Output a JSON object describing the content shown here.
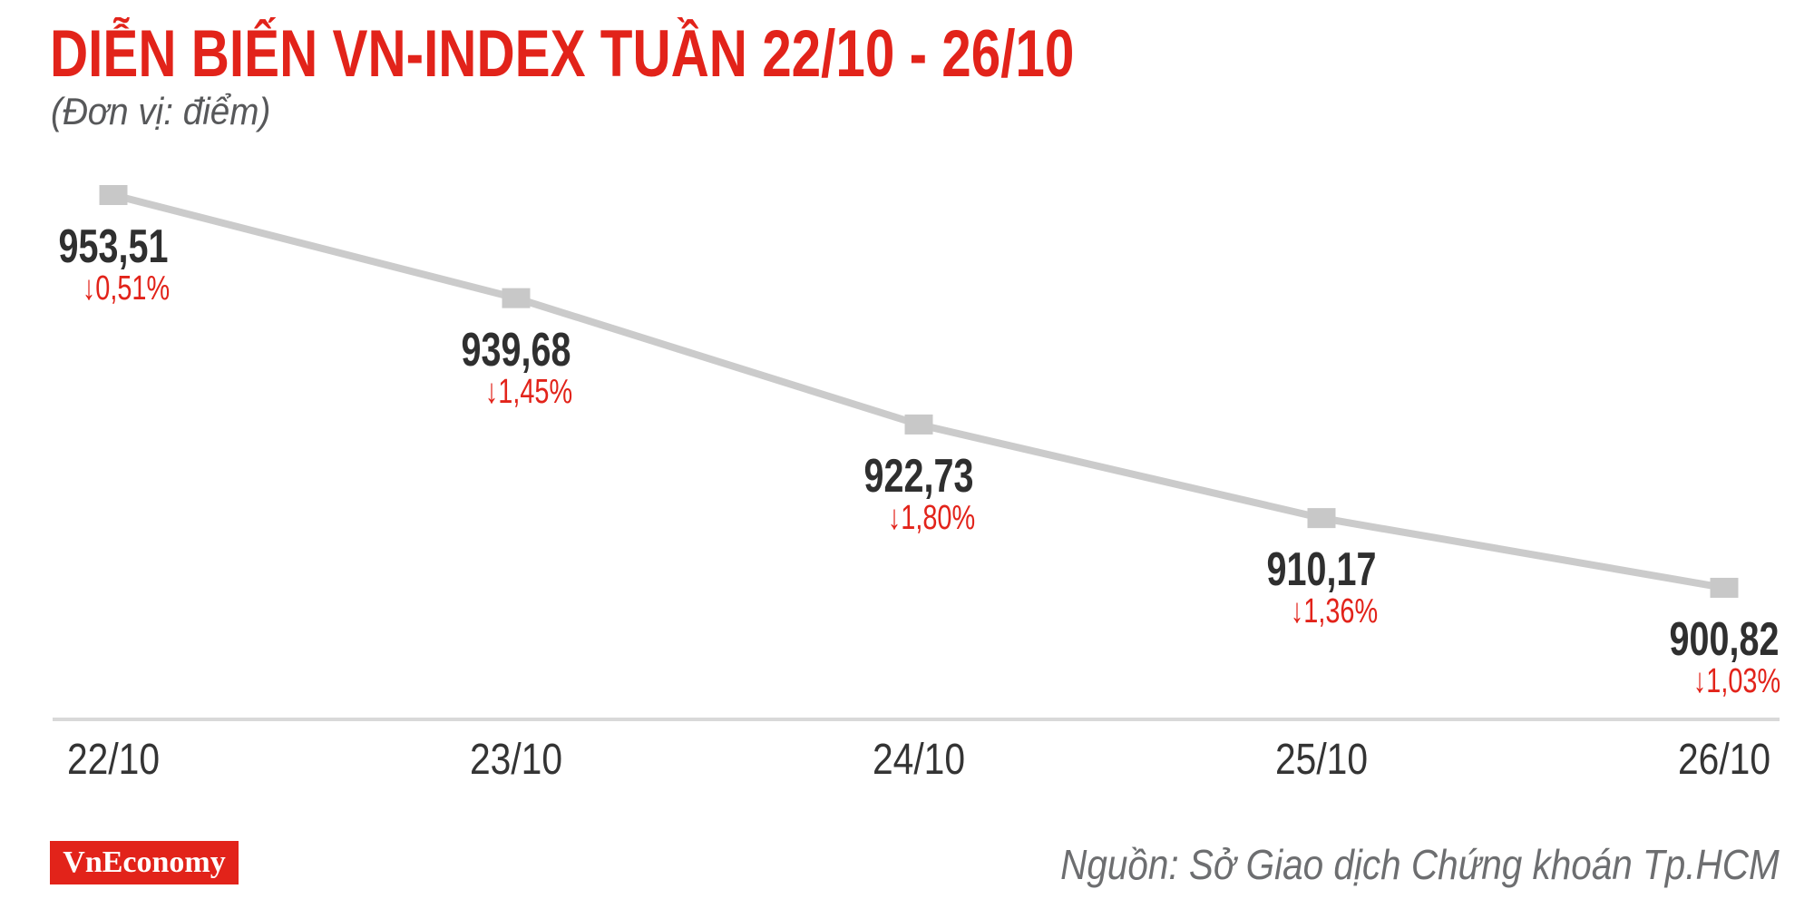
{
  "header": {
    "title": "DIỄN BIẾN VN-INDEX TUẦN 22/10 - 26/10",
    "subtitle": "(Đơn vị: điểm)",
    "title_color": "#e2231a"
  },
  "chart_data": {
    "type": "line",
    "title": "DIỄN BIẾN VN-INDEX TUẦN 22/10 - 26/10",
    "unit_note": "(Đơn vị: điểm)",
    "series_name": "VN-Index",
    "categories": [
      "22/10",
      "23/10",
      "24/10",
      "25/10",
      "26/10"
    ],
    "values": [
      953.51,
      939.68,
      922.73,
      910.17,
      900.82
    ],
    "value_labels": [
      "953,51",
      "939,68",
      "922,73",
      "910,17",
      "900,82"
    ],
    "changes_pct": [
      -0.51,
      -1.45,
      -1.8,
      -1.36,
      -1.03
    ],
    "change_labels": [
      "↓0,51%",
      "↓1,45%",
      "↓1,80%",
      "↓1,36%",
      "↓1,03%"
    ],
    "xlabel": "",
    "ylabel": "điểm",
    "ylim": [
      895,
      958
    ],
    "grid": false,
    "legend": "none",
    "line_color": "#cbcbcb",
    "marker_color": "#c8c8c8",
    "marker_shape": "square",
    "value_color": "#2f2f2f",
    "change_color": "#e2231a",
    "axis_color": "#d9d9d9"
  },
  "footer": {
    "logo_text": "VnEconomy",
    "logo_bg": "#e2231a",
    "source": "Nguồn: Sở Giao dịch Chứng khoán Tp.HCM"
  }
}
